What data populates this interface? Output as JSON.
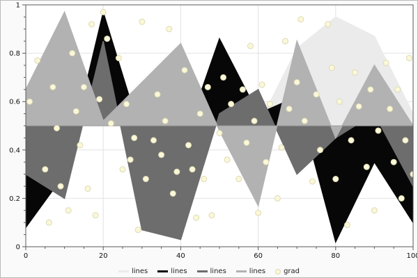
{
  "figure": {
    "bg": "#fafafa",
    "plot_bg": "#ffffff",
    "border_color": "#b9b9b9",
    "axis_color": "#5a5a5a",
    "grid_color": "#e2e2e2",
    "tick_label_color": "#111111",
    "baseline_color": "#9c9c9c"
  },
  "chart_data": {
    "type": "area",
    "title": "",
    "xlabel": "",
    "ylabel": "",
    "grid": true,
    "legend_position": "bottom-center",
    "x_axis": {
      "lim": [
        0,
        100
      ],
      "major_ticks": [
        0,
        20,
        40,
        60,
        80,
        100
      ],
      "tick_labels": [
        "0",
        "20",
        "40",
        "60",
        "80",
        "100"
      ],
      "minor_step": 5
    },
    "y_axis": {
      "lim": [
        0,
        1
      ],
      "major_ticks": [
        0,
        0.2,
        0.4,
        0.6,
        0.8,
        1
      ],
      "tick_labels": [
        "0",
        "0.2",
        "0.4",
        "0.6",
        "0.8",
        "1"
      ],
      "minor_step": 0.05
    },
    "baseline": 0.5,
    "x": [
      0,
      10,
      20,
      30,
      40,
      50,
      60,
      70,
      80,
      90,
      100
    ],
    "series": [
      {
        "name": "lines",
        "color": "#ebebeb",
        "values": [
          0.5,
          0.5,
          0.5,
          0.5,
          0.5,
          0.5,
          0.5,
          0.82,
          0.95,
          0.87,
          0.55
        ]
      },
      {
        "name": "lines",
        "color": "#070707",
        "values": [
          0.08,
          0.3,
          0.97,
          0.45,
          0.4,
          0.86,
          0.55,
          0.62,
          0.02,
          0.35,
          0.1
        ]
      },
      {
        "name": "lines",
        "color": "#6d6d6d",
        "values": [
          0.3,
          0.2,
          0.85,
          0.07,
          0.03,
          0.55,
          0.65,
          0.3,
          0.45,
          0.55,
          0.25
        ]
      },
      {
        "name": "lines",
        "color": "#b2b2b2",
        "values": [
          0.65,
          0.97,
          0.52,
          0.68,
          0.84,
          0.48,
          0.17,
          0.85,
          0.45,
          0.75,
          0.5
        ]
      }
    ],
    "scatter": {
      "name": "grad",
      "fill": "#fbf8d8",
      "edge": "#ddd9b6",
      "radius": 4,
      "points": [
        [
          1,
          0.6
        ],
        [
          3,
          0.77
        ],
        [
          5,
          0.32
        ],
        [
          6,
          0.1
        ],
        [
          7,
          0.66
        ],
        [
          8,
          0.49
        ],
        [
          9,
          0.25
        ],
        [
          11,
          0.15
        ],
        [
          12,
          0.8
        ],
        [
          13,
          0.56
        ],
        [
          14,
          0.42
        ],
        [
          15,
          0.66
        ],
        [
          16,
          0.24
        ],
        [
          17,
          0.92
        ],
        [
          18,
          0.13
        ],
        [
          19,
          0.61
        ],
        [
          20,
          0.97
        ],
        [
          21,
          0.86
        ],
        [
          22,
          0.51
        ],
        [
          24,
          0.78
        ],
        [
          25,
          0.32
        ],
        [
          26,
          0.59
        ],
        [
          27,
          0.36
        ],
        [
          28,
          0.45
        ],
        [
          29,
          0.07
        ],
        [
          30,
          0.93
        ],
        [
          31,
          0.28
        ],
        [
          33,
          0.44
        ],
        [
          34,
          0.63
        ],
        [
          35,
          0.38
        ],
        [
          36,
          0.52
        ],
        [
          37,
          0.9
        ],
        [
          38,
          0.22
        ],
        [
          39,
          0.31
        ],
        [
          41,
          0.73
        ],
        [
          42,
          0.42
        ],
        [
          43,
          0.32
        ],
        [
          44,
          0.12
        ],
        [
          45,
          0.55
        ],
        [
          46,
          0.28
        ],
        [
          47,
          0.66
        ],
        [
          48,
          0.13
        ],
        [
          50,
          0.47
        ],
        [
          51,
          0.7
        ],
        [
          52,
          0.36
        ],
        [
          53,
          0.59
        ],
        [
          55,
          0.28
        ],
        [
          56,
          0.65
        ],
        [
          57,
          0.43
        ],
        [
          58,
          0.83
        ],
        [
          59,
          0.52
        ],
        [
          60,
          0.14
        ],
        [
          61,
          0.67
        ],
        [
          62,
          0.35
        ],
        [
          63,
          0.59
        ],
        [
          65,
          0.2
        ],
        [
          66,
          0.41
        ],
        [
          67,
          0.85
        ],
        [
          68,
          0.57
        ],
        [
          70,
          0.68
        ],
        [
          71,
          0.94
        ],
        [
          72,
          0.52
        ],
        [
          74,
          0.27
        ],
        [
          75,
          0.63
        ],
        [
          76,
          0.4
        ],
        [
          78,
          0.92
        ],
        [
          79,
          0.74
        ],
        [
          80,
          0.28
        ],
        [
          81,
          0.6
        ],
        [
          83,
          0.09
        ],
        [
          84,
          0.44
        ],
        [
          85,
          0.72
        ],
        [
          86,
          0.58
        ],
        [
          88,
          0.33
        ],
        [
          89,
          0.65
        ],
        [
          90,
          0.15
        ],
        [
          91,
          0.48
        ],
        [
          93,
          0.76
        ],
        [
          94,
          0.57
        ],
        [
          95,
          0.35
        ],
        [
          96,
          0.65
        ],
        [
          97,
          0.2
        ],
        [
          98,
          0.44
        ],
        [
          99,
          0.78
        ],
        [
          100,
          0.3
        ]
      ]
    },
    "legend": [
      {
        "label": "lines",
        "color": "#ebebeb",
        "marker": "line"
      },
      {
        "label": "lines",
        "color": "#070707",
        "marker": "line"
      },
      {
        "label": "lines",
        "color": "#6d6d6d",
        "marker": "line"
      },
      {
        "label": "lines",
        "color": "#b2b2b2",
        "marker": "line"
      },
      {
        "label": "grad",
        "color": "#fbf8d8",
        "marker": "dot"
      }
    ]
  }
}
